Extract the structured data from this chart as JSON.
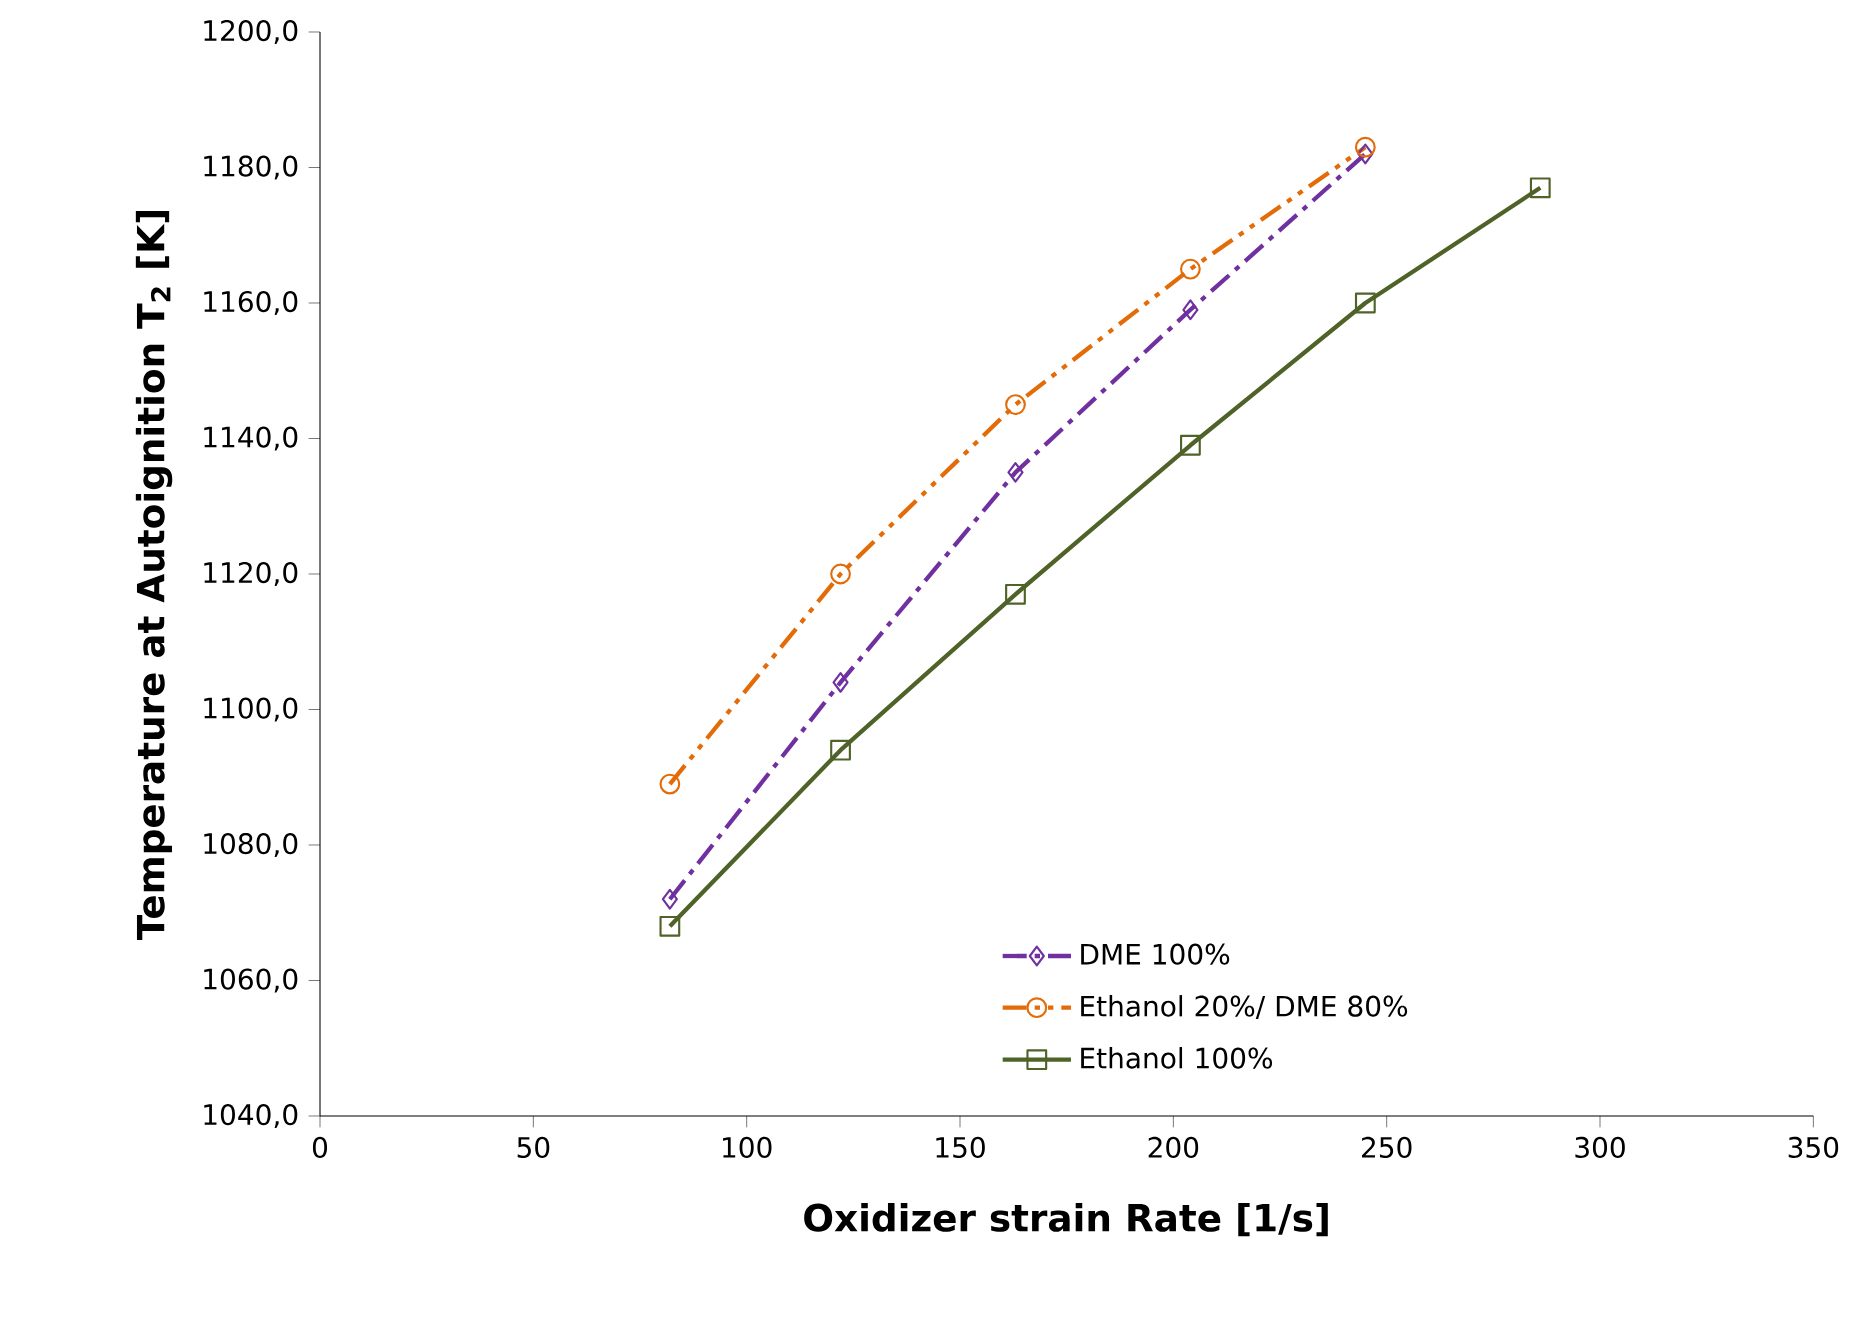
{
  "chart_data": {
    "type": "line",
    "xlabel": "Oxidizer strain Rate [1/s]",
    "ylabel": "Temperature at Autoignition T$_{2}$ [K]",
    "xlim": [
      0,
      350
    ],
    "xticks": [
      0,
      50,
      100,
      150,
      200,
      250,
      300,
      350
    ],
    "ylim": [
      1040,
      1200
    ],
    "yticks": [
      {
        "value": 1040,
        "label": "1040,0"
      },
      {
        "value": 1060,
        "label": "1060,0"
      },
      {
        "value": 1080,
        "label": "1080,0"
      },
      {
        "value": 1100,
        "label": "1100,0"
      },
      {
        "value": 1120,
        "label": "1120,0"
      },
      {
        "value": 1140,
        "label": "1140,0"
      },
      {
        "value": 1160,
        "label": "1160,0"
      },
      {
        "value": 1180,
        "label": "1180,0"
      },
      {
        "value": 1200,
        "label": "1200,0"
      }
    ],
    "grid": false,
    "legend": "bottom right",
    "series": [
      {
        "name": "DME 100%",
        "color": "#7030a0",
        "marker": "diamond",
        "line_style": "dashdot",
        "x": [
          82,
          122,
          163,
          204,
          245
        ],
        "values": [
          1072,
          1104,
          1135,
          1159,
          1182
        ]
      },
      {
        "name": "Ethanol 20%/ DME 80%",
        "color": "#e36c09",
        "marker": "circle",
        "line_style": "dashdotdot",
        "x": [
          82,
          122,
          163,
          204,
          245
        ],
        "values": [
          1089,
          1120,
          1145,
          1165,
          1183
        ]
      },
      {
        "name": "Ethanol 100%",
        "color": "#4f6228",
        "marker": "square",
        "line_style": "solid",
        "x": [
          82,
          122,
          163,
          204,
          245,
          286
        ],
        "values": [
          1068,
          1094,
          1117,
          1139,
          1160,
          1177
        ]
      }
    ]
  }
}
